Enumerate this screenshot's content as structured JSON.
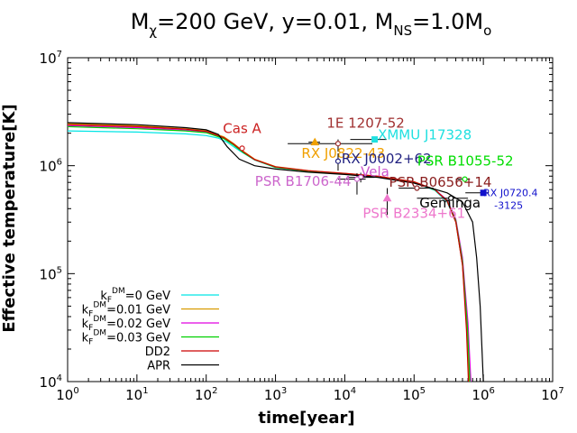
{
  "chart_data": {
    "type": "line",
    "title": "M_χ=200 GeV, y=0.01, M_NS=1.0M_o",
    "title_parts": {
      "m1": "M",
      "chi": "χ",
      "mid": "=200 GeV, y=0.01, M",
      "ns": "NS",
      "eq": "=1.0M",
      "o": "o"
    },
    "xlabel": "time[year]",
    "ylabel": "Effective temperature[K]",
    "xscale": "log",
    "yscale": "log",
    "xlim": [
      1,
      10000000
    ],
    "ylim": [
      10000,
      10000000
    ],
    "x_ticks": [
      {
        "base": "10",
        "exp": "0",
        "value": 1
      },
      {
        "base": "10",
        "exp": "1",
        "value": 10
      },
      {
        "base": "10",
        "exp": "2",
        "value": 100
      },
      {
        "base": "10",
        "exp": "3",
        "value": 1000
      },
      {
        "base": "10",
        "exp": "4",
        "value": 10000
      },
      {
        "base": "10",
        "exp": "5",
        "value": 100000
      },
      {
        "base": "10",
        "exp": "6",
        "value": 1000000
      },
      {
        "base": "10",
        "exp": "7",
        "value": 10000000
      }
    ],
    "y_ticks": [
      {
        "base": "10",
        "exp": "4",
        "value": 10000
      },
      {
        "base": "10",
        "exp": "5",
        "value": 100000
      },
      {
        "base": "10",
        "exp": "6",
        "value": 1000000
      },
      {
        "base": "10",
        "exp": "7",
        "value": 10000000
      }
    ],
    "grid": false,
    "legend_position": "bottom-left",
    "legend": [
      {
        "main": "k",
        "sub": "F",
        "sup": "DM",
        "rest": "=0 GeV",
        "color": "#00e5e5"
      },
      {
        "main": "k",
        "sub": "F",
        "sup": "DM",
        "rest": "=0.01 GeV",
        "color": "#d89a00"
      },
      {
        "main": "k",
        "sub": "F",
        "sup": "DM",
        "rest": "=0.02 GeV",
        "color": "#e000e0"
      },
      {
        "main": "k",
        "sub": "F",
        "sup": "DM",
        "rest": "=0.03 GeV",
        "color": "#00d000"
      },
      {
        "main": "DD2",
        "sub": "",
        "sup": "",
        "rest": "",
        "color": "#cc0000"
      },
      {
        "main": "APR",
        "sub": "",
        "sup": "",
        "rest": "",
        "color": "#000000"
      }
    ],
    "series": [
      {
        "color": "#00e5e5",
        "points": [
          [
            1,
            2100000
          ],
          [
            10,
            2050000
          ],
          [
            50,
            1970000
          ],
          [
            100,
            1900000
          ],
          [
            150,
            1800000
          ],
          [
            200,
            1650000
          ],
          [
            300,
            1380000
          ],
          [
            500,
            1130000
          ],
          [
            1000,
            960000
          ],
          [
            3000,
            890000
          ],
          [
            10000,
            840000
          ],
          [
            30000,
            790000
          ],
          [
            100000,
            700000
          ],
          [
            200000,
            590000
          ],
          [
            300000,
            460000
          ],
          [
            400000,
            300000
          ],
          [
            500000,
            120000
          ],
          [
            600000,
            30000
          ],
          [
            650000,
            10000
          ]
        ]
      },
      {
        "color": "#d89a00",
        "points": [
          [
            1,
            2450000
          ],
          [
            10,
            2350000
          ],
          [
            50,
            2200000
          ],
          [
            100,
            2100000
          ],
          [
            180,
            1850000
          ],
          [
            250,
            1600000
          ],
          [
            350,
            1350000
          ],
          [
            500,
            1150000
          ],
          [
            1000,
            980000
          ],
          [
            3000,
            900000
          ],
          [
            10000,
            850000
          ],
          [
            30000,
            800000
          ],
          [
            100000,
            710000
          ],
          [
            200000,
            600000
          ],
          [
            300000,
            470000
          ],
          [
            400000,
            300000
          ],
          [
            500000,
            120000
          ],
          [
            580000,
            30000
          ],
          [
            620000,
            10000
          ]
        ]
      },
      {
        "color": "#e000e0",
        "points": [
          [
            1,
            2350000
          ],
          [
            10,
            2250000
          ],
          [
            50,
            2130000
          ],
          [
            100,
            2050000
          ],
          [
            180,
            1800000
          ],
          [
            250,
            1560000
          ],
          [
            350,
            1320000
          ],
          [
            500,
            1140000
          ],
          [
            1000,
            970000
          ],
          [
            3000,
            895000
          ],
          [
            10000,
            845000
          ],
          [
            30000,
            795000
          ],
          [
            100000,
            705000
          ],
          [
            200000,
            600000
          ],
          [
            300000,
            480000
          ],
          [
            400000,
            320000
          ],
          [
            500000,
            140000
          ],
          [
            600000,
            35000
          ],
          [
            660000,
            10000
          ]
        ]
      },
      {
        "color": "#00d000",
        "points": [
          [
            1,
            2300000
          ],
          [
            10,
            2200000
          ],
          [
            50,
            2100000
          ],
          [
            100,
            2020000
          ],
          [
            180,
            1780000
          ],
          [
            250,
            1550000
          ],
          [
            350,
            1310000
          ],
          [
            500,
            1135000
          ],
          [
            1000,
            965000
          ],
          [
            3000,
            892000
          ],
          [
            10000,
            842000
          ],
          [
            30000,
            792000
          ],
          [
            100000,
            703000
          ],
          [
            200000,
            595000
          ],
          [
            300000,
            475000
          ],
          [
            400000,
            310000
          ],
          [
            500000,
            130000
          ],
          [
            590000,
            32000
          ],
          [
            640000,
            10000
          ]
        ]
      },
      {
        "color": "#cc0000",
        "points": [
          [
            1,
            2400000
          ],
          [
            10,
            2300000
          ],
          [
            50,
            2180000
          ],
          [
            100,
            2080000
          ],
          [
            180,
            1820000
          ],
          [
            250,
            1580000
          ],
          [
            350,
            1330000
          ],
          [
            500,
            1140000
          ],
          [
            1000,
            975000
          ],
          [
            3000,
            898000
          ],
          [
            10000,
            848000
          ],
          [
            30000,
            798000
          ],
          [
            100000,
            708000
          ],
          [
            200000,
            600000
          ],
          [
            300000,
            470000
          ],
          [
            400000,
            300000
          ],
          [
            500000,
            120000
          ],
          [
            570000,
            30000
          ],
          [
            610000,
            10000
          ]
        ]
      },
      {
        "color": "#000000",
        "points": [
          [
            1,
            2500000
          ],
          [
            10,
            2400000
          ],
          [
            50,
            2250000
          ],
          [
            100,
            2150000
          ],
          [
            150,
            1950000
          ],
          [
            200,
            1500000
          ],
          [
            300,
            1150000
          ],
          [
            500,
            1000000
          ],
          [
            1000,
            930000
          ],
          [
            3000,
            870000
          ],
          [
            10000,
            830000
          ],
          [
            30000,
            780000
          ],
          [
            100000,
            690000
          ],
          [
            300000,
            560000
          ],
          [
            500000,
            460000
          ],
          [
            700000,
            300000
          ],
          [
            800000,
            140000
          ],
          [
            900000,
            50000
          ],
          [
            1000000,
            10000
          ]
        ]
      }
    ],
    "observations": [
      {
        "label": "Cas A",
        "color": "#cc2222",
        "x": 330,
        "y": 1450000,
        "symbol": "circle",
        "xerr": [
          300,
          360
        ],
        "yerr": [
          1400000,
          1500000
        ],
        "label_x": 330,
        "label_y": 2000000,
        "label_align": "middle"
      },
      {
        "label": "1E 1207-52",
        "color": "#a03030",
        "x": 8000,
        "y": 1600000,
        "symbol": "circle",
        "xerr": [
          1500,
          25000
        ],
        "yerr": [
          1350000,
          1750000
        ],
        "label_x": 20000,
        "label_y": 2250000,
        "label_align": "middle"
      },
      {
        "label": "RX J0822-43",
        "color": "#f0a000",
        "x": 3700,
        "y": 1650000,
        "symbol": "triangle",
        "xerr": [
          3000,
          4400
        ],
        "yerr": null,
        "label_x": 9500,
        "label_y": 1180000,
        "label_align": "middle"
      },
      {
        "label": "XMMU J17328",
        "color": "#20e0e0",
        "x": 27000,
        "y": 1750000,
        "symbol": "square",
        "xerr": [
          12000,
          40000
        ],
        "yerr": null,
        "label_x": 30000,
        "label_y": 1750000,
        "label_align": "start"
      },
      {
        "label": "RX J0002+62",
        "color": "#202080",
        "x": 8000,
        "y": 1100000,
        "symbol": "circle",
        "xerr": null,
        "yerr": [
          900000,
          1300000
        ],
        "label_x": 9000,
        "label_y": 1050000,
        "label_align": "start"
      },
      {
        "label": "Vela",
        "color": "#cc55cc",
        "x": 17000,
        "y": 780000,
        "symbol": "circle",
        "xerr": [
          11000,
          27000
        ],
        "yerr": [
          700000,
          860000
        ],
        "label_x": 17000,
        "label_y": 800000,
        "label_align": "start"
      },
      {
        "label": "PSR B1706-44",
        "color": "#cc66cc",
        "x": 15000,
        "y": 750000,
        "symbol": "circle",
        "xerr": [
          8000,
          20000
        ],
        "yerr": [
          540000,
          850000
        ],
        "label_x": 2500,
        "label_y": 650000,
        "label_align": "middle"
      },
      {
        "label": "PSR B2334+61",
        "color": "#ee77cc",
        "x": 41000,
        "y": 500000,
        "symbol": "triangle",
        "xerr": null,
        "yerr": [
          350000,
          620000
        ],
        "label_x": 100000,
        "label_y": 330000,
        "label_align": "middle"
      },
      {
        "label": "PSR B1055-52",
        "color": "#00dd00",
        "x": 540000,
        "y": 750000,
        "symbol": "circle",
        "xerr": [
          400000,
          640000
        ],
        "yerr": null,
        "label_x": 550000,
        "label_y": 1000000,
        "label_align": "middle"
      },
      {
        "label": "PSR B0656+14",
        "color": "#8b2020",
        "x": 110000,
        "y": 620000,
        "symbol": "circle",
        "xerr": [
          60000,
          190000
        ],
        "yerr": null,
        "label_x": 240000,
        "label_y": 640000,
        "label_align": "middle"
      },
      {
        "label": "Geminga",
        "color": "#000000",
        "x": 340000,
        "y": 500000,
        "symbol": "circle",
        "xerr": [
          110000,
          600000
        ],
        "yerr": null,
        "label_x": 330000,
        "label_y": 410000,
        "label_align": "middle"
      },
      {
        "label": "RX J0720.4-3125",
        "label_lines": [
          "RX J0720.4",
          "-3125"
        ],
        "color": "#1010cc",
        "x": 1000000,
        "y": 560000,
        "symbol": "square",
        "xerr": [
          550000,
          1200000
        ],
        "yerr": null,
        "label_x": 1000000,
        "label_y": 520000,
        "label_align": "start"
      }
    ]
  }
}
